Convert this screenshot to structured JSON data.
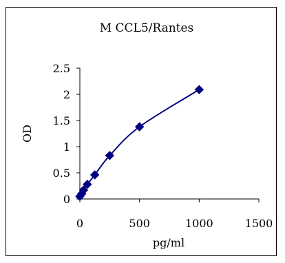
{
  "chart_data": {
    "type": "scatter",
    "title": "M CCL5/Rantes",
    "xlabel": "pg/ml",
    "ylabel": "OD",
    "xlim": [
      0,
      1500
    ],
    "ylim": [
      0,
      2.5
    ],
    "x_ticks": [
      "0",
      "500",
      "1000",
      "1500"
    ],
    "y_ticks": [
      "0",
      "0.5",
      "1",
      "1.5",
      "2",
      "2.5"
    ],
    "grid": false,
    "legend": "none",
    "series": [
      {
        "x": [
          0,
          15.6,
          31.2,
          62.5,
          125,
          250,
          500,
          1000
        ],
        "y": [
          0.05,
          0.1,
          0.17,
          0.28,
          0.46,
          0.83,
          1.38,
          2.09
        ],
        "marker": "diamond",
        "color": "#000080",
        "curve": "smooth"
      }
    ]
  }
}
